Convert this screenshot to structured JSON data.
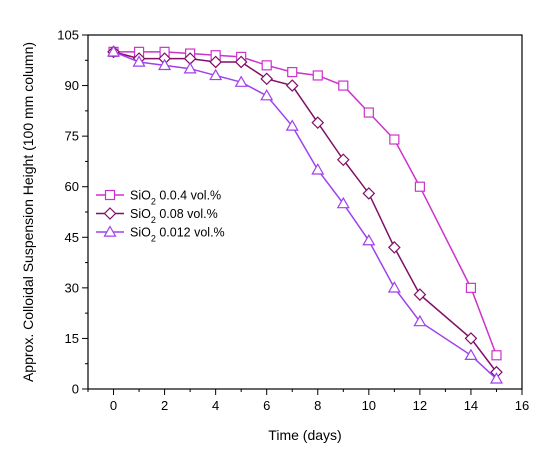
{
  "chart_data": {
    "type": "line",
    "title": "",
    "xlabel": "Time (days)",
    "ylabel": "Approx. Colloidal Suspension Height (100 mm column)",
    "xlim": [
      -1,
      16
    ],
    "ylim": [
      0,
      105
    ],
    "x_ticks": [
      0,
      2,
      4,
      6,
      8,
      10,
      12,
      14,
      16
    ],
    "y_ticks": [
      0,
      15,
      30,
      45,
      60,
      75,
      90,
      105
    ],
    "grid": false,
    "legend_position": "left-middle",
    "series": [
      {
        "name": "SiO2 0.0.4 vol.%",
        "name_main": "SiO",
        "name_sub": "2",
        "name_rest": " 0.0.4 vol.%",
        "marker": "square",
        "color": "#cc33cc",
        "x": [
          0,
          1,
          2,
          3,
          4,
          5,
          6,
          7,
          8,
          9,
          10,
          11,
          12,
          14,
          15
        ],
        "y": [
          100,
          100,
          100,
          99.5,
          99,
          98.5,
          96,
          94,
          93,
          90,
          82,
          74,
          60,
          30,
          10
        ]
      },
      {
        "name": "SiO2 0.08 vol.%",
        "name_main": "SiO",
        "name_sub": "2",
        "name_rest": " 0.08 vol.%",
        "marker": "diamond",
        "color": "#800f66",
        "x": [
          0,
          1,
          2,
          3,
          4,
          5,
          6,
          7,
          8,
          9,
          10,
          11,
          12,
          14,
          15
        ],
        "y": [
          100,
          98,
          98,
          98,
          97,
          97,
          92,
          90,
          79,
          68,
          58,
          42,
          28,
          15,
          5
        ]
      },
      {
        "name": "SiO2 0.012 vol.%",
        "name_main": "SiO",
        "name_sub": "2",
        "name_rest": " 0.012 vol.%",
        "marker": "triangle",
        "color": "#a040ee",
        "x": [
          0,
          1,
          2,
          3,
          4,
          5,
          6,
          7,
          8,
          9,
          10,
          11,
          12,
          14,
          15
        ],
        "y": [
          100,
          97,
          96,
          95,
          93,
          91,
          87,
          78,
          65,
          55,
          44,
          30,
          20,
          10,
          3
        ]
      }
    ]
  }
}
